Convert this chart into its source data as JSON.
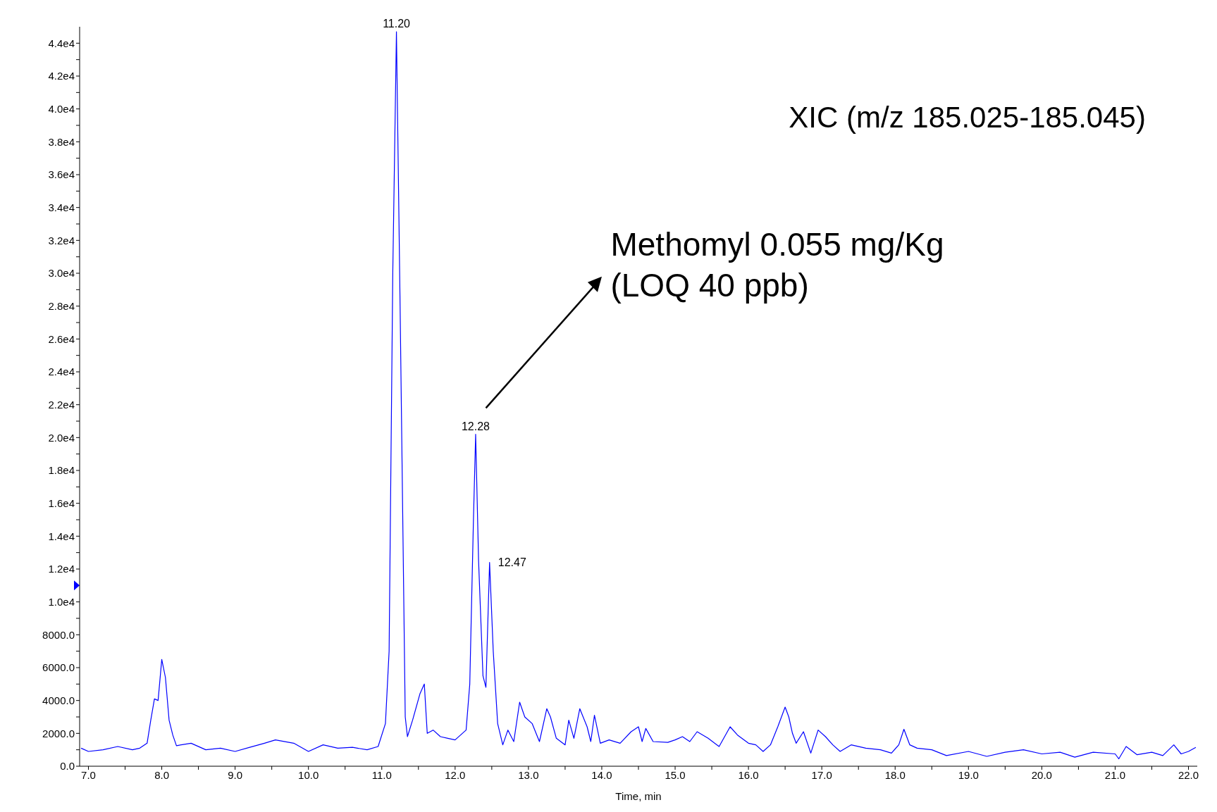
{
  "chart_data": {
    "type": "line",
    "title": "XIC (m/z 185.025-185.045)",
    "xlabel": "Time, min",
    "xlim": [
      6.88,
      22.12
    ],
    "ylim": [
      0,
      45000
    ],
    "xticks": [
      {
        "value": 7,
        "label": "7.0"
      },
      {
        "value": 7.5,
        "label": null
      },
      {
        "value": 8,
        "label": "8.0"
      },
      {
        "value": 8.5,
        "label": null
      },
      {
        "value": 9,
        "label": "9.0"
      },
      {
        "value": 9.5,
        "label": null
      },
      {
        "value": 10,
        "label": "10.0"
      },
      {
        "value": 10.5,
        "label": null
      },
      {
        "value": 11,
        "label": "11.0"
      },
      {
        "value": 11.5,
        "label": null
      },
      {
        "value": 12,
        "label": "12.0"
      },
      {
        "value": 12.5,
        "label": null
      },
      {
        "value": 13,
        "label": "13.0"
      },
      {
        "value": 13.5,
        "label": null
      },
      {
        "value": 14,
        "label": "14.0"
      },
      {
        "value": 14.5,
        "label": null
      },
      {
        "value": 15,
        "label": "15.0"
      },
      {
        "value": 15.5,
        "label": null
      },
      {
        "value": 16,
        "label": "16.0"
      },
      {
        "value": 16.5,
        "label": null
      },
      {
        "value": 17,
        "label": "17.0"
      },
      {
        "value": 17.5,
        "label": null
      },
      {
        "value": 18,
        "label": "18.0"
      },
      {
        "value": 18.5,
        "label": null
      },
      {
        "value": 19,
        "label": "19.0"
      },
      {
        "value": 19.5,
        "label": null
      },
      {
        "value": 20,
        "label": "20.0"
      },
      {
        "value": 20.5,
        "label": null
      },
      {
        "value": 21,
        "label": "21.0"
      },
      {
        "value": 21.5,
        "label": null
      },
      {
        "value": 22,
        "label": "22.0"
      }
    ],
    "yticks": [
      {
        "value": 0,
        "label": "0.0"
      },
      {
        "value": 1000,
        "label": null
      },
      {
        "value": 2000,
        "label": "2000.0"
      },
      {
        "value": 3000,
        "label": null
      },
      {
        "value": 4000,
        "label": "4000.0"
      },
      {
        "value": 5000,
        "label": null
      },
      {
        "value": 6000,
        "label": "6000.0"
      },
      {
        "value": 7000,
        "label": null
      },
      {
        "value": 8000,
        "label": "8000.0"
      },
      {
        "value": 9000,
        "label": null
      },
      {
        "value": 10000,
        "label": "1.0e4"
      },
      {
        "value": 11000,
        "label": null
      },
      {
        "value": 12000,
        "label": "1.2e4"
      },
      {
        "value": 13000,
        "label": null
      },
      {
        "value": 14000,
        "label": "1.4e4"
      },
      {
        "value": 15000,
        "label": null
      },
      {
        "value": 16000,
        "label": "1.6e4"
      },
      {
        "value": 17000,
        "label": null
      },
      {
        "value": 18000,
        "label": "1.8e4"
      },
      {
        "value": 19000,
        "label": null
      },
      {
        "value": 20000,
        "label": "2.0e4"
      },
      {
        "value": 21000,
        "label": null
      },
      {
        "value": 22000,
        "label": "2.2e4"
      },
      {
        "value": 23000,
        "label": null
      },
      {
        "value": 24000,
        "label": "2.4e4"
      },
      {
        "value": 25000,
        "label": null
      },
      {
        "value": 26000,
        "label": "2.6e4"
      },
      {
        "value": 27000,
        "label": null
      },
      {
        "value": 28000,
        "label": "2.8e4"
      },
      {
        "value": 29000,
        "label": null
      },
      {
        "value": 30000,
        "label": "3.0e4"
      },
      {
        "value": 31000,
        "label": null
      },
      {
        "value": 32000,
        "label": "3.2e4"
      },
      {
        "value": 33000,
        "label": null
      },
      {
        "value": 34000,
        "label": "3.4e4"
      },
      {
        "value": 35000,
        "label": null
      },
      {
        "value": 36000,
        "label": "3.6e4"
      },
      {
        "value": 37000,
        "label": null
      },
      {
        "value": 38000,
        "label": "3.8e4"
      },
      {
        "value": 39000,
        "label": null
      },
      {
        "value": 40000,
        "label": "4.0e4"
      },
      {
        "value": 41000,
        "label": null
      },
      {
        "value": 42000,
        "label": "4.2e4"
      },
      {
        "value": 43000,
        "label": null
      },
      {
        "value": 44000,
        "label": "4.4e4"
      }
    ],
    "marker": "none",
    "line_style": "solid",
    "series": [
      {
        "color": "#0000ff",
        "x": [
          6.9,
          7.0,
          7.2,
          7.4,
          7.6,
          7.7,
          7.8,
          7.85,
          7.9,
          7.95,
          8.0,
          8.05,
          8.1,
          8.15,
          8.2,
          8.4,
          8.6,
          8.8,
          9.0,
          9.2,
          9.4,
          9.55,
          9.8,
          10.0,
          10.2,
          10.4,
          10.6,
          10.8,
          10.95,
          11.05,
          11.1,
          11.15,
          11.2,
          11.25,
          11.32,
          11.35,
          11.42,
          11.52,
          11.58,
          11.62,
          11.7,
          11.8,
          11.9,
          12.0,
          12.15,
          12.2,
          12.25,
          12.28,
          12.32,
          12.38,
          12.42,
          12.47,
          12.52,
          12.58,
          12.65,
          12.72,
          12.8,
          12.88,
          12.95,
          13.05,
          13.15,
          13.25,
          13.3,
          13.38,
          13.5,
          13.55,
          13.62,
          13.7,
          13.8,
          13.85,
          13.9,
          13.98,
          14.1,
          14.25,
          14.4,
          14.5,
          14.55,
          14.6,
          14.7,
          14.9,
          15.0,
          15.1,
          15.2,
          15.3,
          15.45,
          15.6,
          15.75,
          15.85,
          16.0,
          16.1,
          16.2,
          16.3,
          16.4,
          16.5,
          16.55,
          16.6,
          16.65,
          16.75,
          16.85,
          16.95,
          17.05,
          17.15,
          17.25,
          17.4,
          17.6,
          17.8,
          17.95,
          18.05,
          18.12,
          18.2,
          18.3,
          18.5,
          18.7,
          19.0,
          19.25,
          19.5,
          19.75,
          20.0,
          20.25,
          20.45,
          20.7,
          21.0,
          21.05,
          21.15,
          21.3,
          21.5,
          21.65,
          21.8,
          21.9,
          22.0,
          22.1
        ],
        "values": [
          1100,
          900,
          1000,
          1200,
          1000,
          1100,
          1400,
          2800,
          4100,
          4000,
          6500,
          5400,
          2800,
          1900,
          1250,
          1400,
          1000,
          1100,
          900,
          1150,
          1400,
          1600,
          1400,
          900,
          1300,
          1100,
          1150,
          1000,
          1200,
          2600,
          7000,
          30000,
          44700,
          28000,
          3000,
          1800,
          2800,
          4400,
          5000,
          2000,
          2200,
          1800,
          1700,
          1600,
          2200,
          5000,
          15000,
          20200,
          12500,
          5500,
          4800,
          12400,
          7000,
          2600,
          1300,
          2200,
          1500,
          3900,
          3000,
          2600,
          1500,
          3500,
          3000,
          1700,
          1300,
          2800,
          1700,
          3500,
          2400,
          1500,
          3100,
          1400,
          1600,
          1400,
          2100,
          2400,
          1500,
          2300,
          1500,
          1450,
          1600,
          1800,
          1500,
          2100,
          1700,
          1200,
          2400,
          1900,
          1400,
          1300,
          900,
          1300,
          2400,
          3600,
          3000,
          2000,
          1400,
          2100,
          800,
          2200,
          1800,
          1300,
          900,
          1300,
          1100,
          1000,
          800,
          1300,
          2250,
          1300,
          1100,
          1000,
          650,
          900,
          600,
          850,
          1000,
          750,
          850,
          550,
          850,
          750,
          450,
          1200,
          700,
          850,
          650,
          1300,
          750,
          900,
          1150
        ]
      }
    ],
    "annotations": [
      {
        "text": "11.20",
        "x": 11.2,
        "y": 44700
      },
      {
        "text": "12.28",
        "x": 12.28,
        "y": 20200
      },
      {
        "text": "12.47",
        "x": 12.47,
        "y": 12400
      },
      "Methomyl 0.055 mg/Kg\n(LOQ 40 ppb)"
    ]
  }
}
